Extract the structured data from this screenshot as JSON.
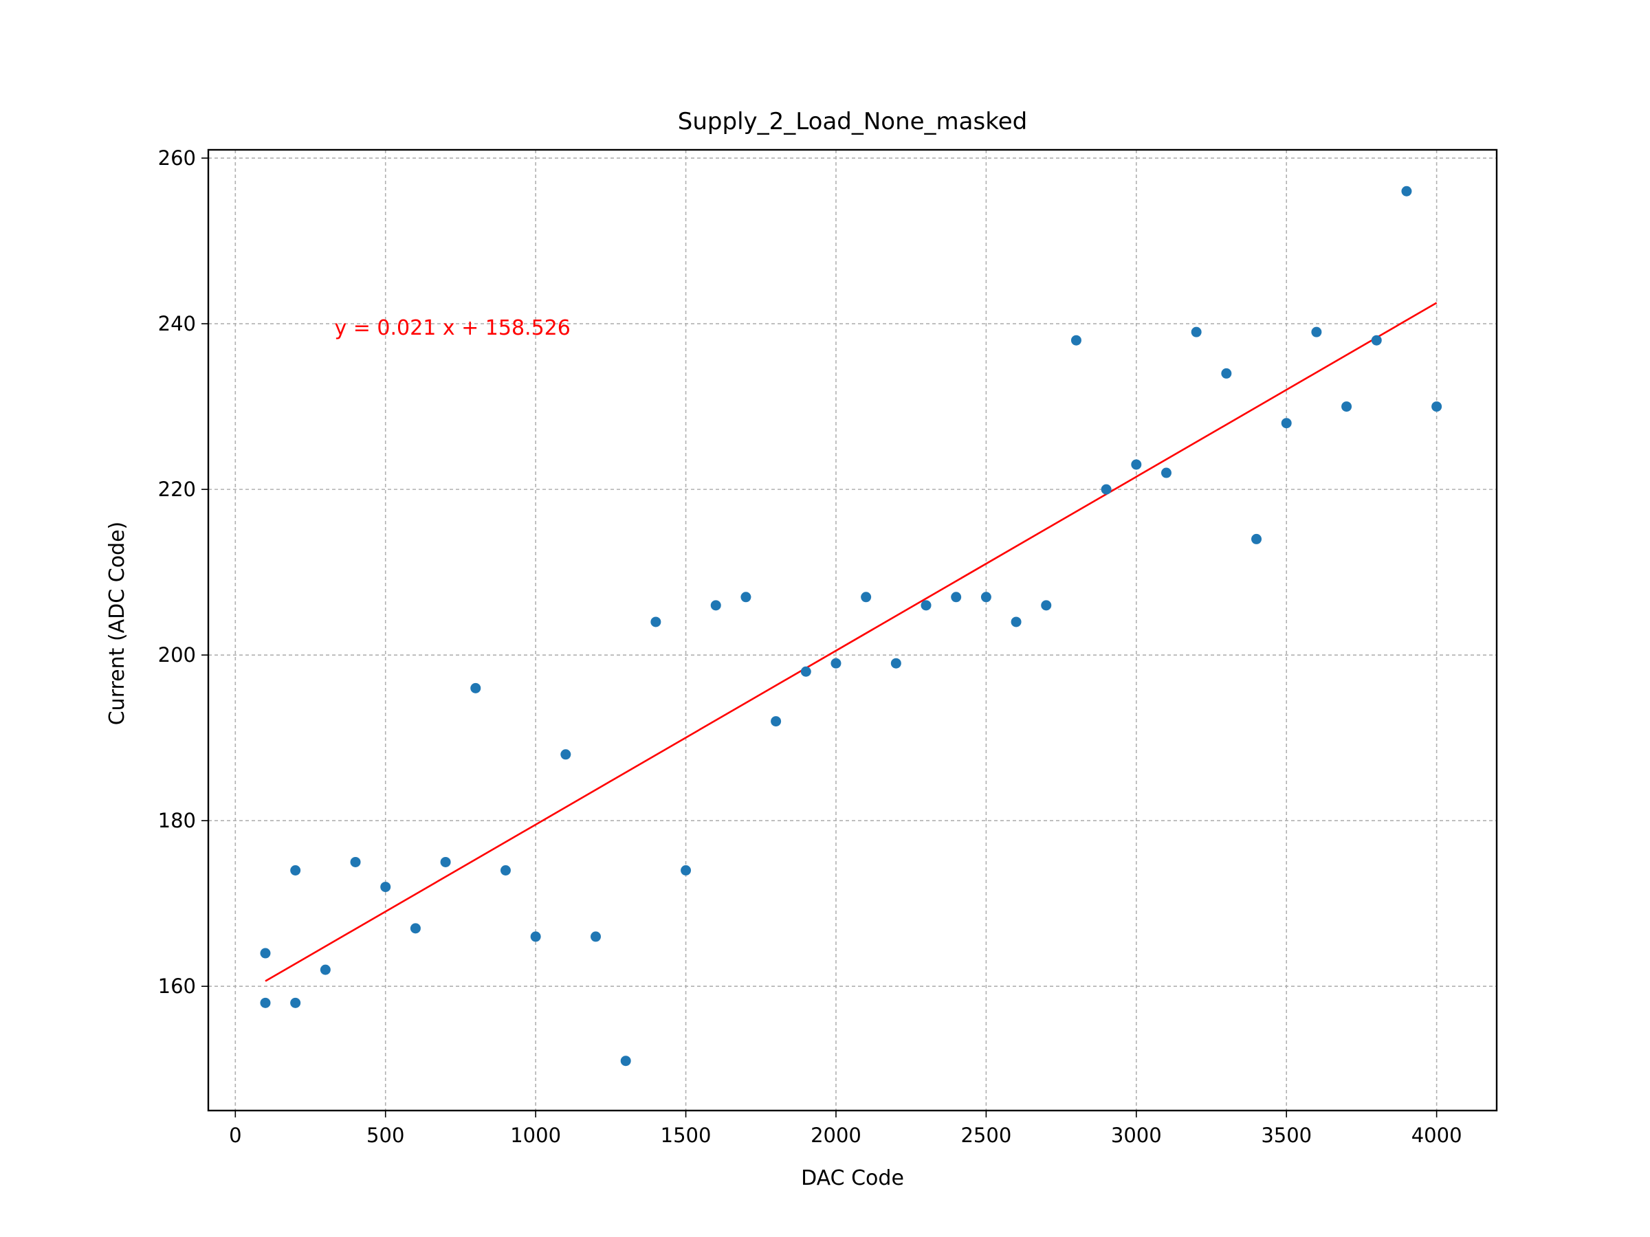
{
  "chart_data": {
    "type": "scatter",
    "title": "Supply_2_Load_None_masked",
    "xlabel": "DAC Code",
    "ylabel": "Current (ADC Code)",
    "xlim": [
      -90,
      4200
    ],
    "ylim": [
      145,
      261
    ],
    "xticks": [
      0,
      500,
      1000,
      1500,
      2000,
      2500,
      3000,
      3500,
      4000
    ],
    "yticks": [
      160,
      180,
      200,
      220,
      240,
      260
    ],
    "grid": true,
    "legend": "none",
    "series": [
      {
        "kind": "scatter",
        "color": "#1f77b4",
        "points": [
          [
            100,
            164
          ],
          [
            100,
            158
          ],
          [
            200,
            174
          ],
          [
            200,
            158
          ],
          [
            300,
            162
          ],
          [
            400,
            175
          ],
          [
            500,
            172
          ],
          [
            600,
            167
          ],
          [
            700,
            175
          ],
          [
            800,
            196
          ],
          [
            900,
            174
          ],
          [
            1000,
            166
          ],
          [
            1100,
            188
          ],
          [
            1200,
            166
          ],
          [
            1300,
            151
          ],
          [
            1400,
            204
          ],
          [
            1500,
            174
          ],
          [
            1600,
            206
          ],
          [
            1700,
            207
          ],
          [
            1800,
            192
          ],
          [
            1900,
            198
          ],
          [
            2000,
            199
          ],
          [
            2100,
            207
          ],
          [
            2200,
            199
          ],
          [
            2300,
            206
          ],
          [
            2400,
            207
          ],
          [
            2500,
            207
          ],
          [
            2600,
            204
          ],
          [
            2700,
            206
          ],
          [
            2800,
            238
          ],
          [
            2900,
            220
          ],
          [
            3000,
            223
          ],
          [
            3100,
            222
          ],
          [
            3200,
            239
          ],
          [
            3300,
            234
          ],
          [
            3400,
            214
          ],
          [
            3500,
            228
          ],
          [
            3600,
            239
          ],
          [
            3700,
            230
          ],
          [
            3800,
            238
          ],
          [
            3900,
            256
          ],
          [
            4000,
            230
          ]
        ]
      },
      {
        "kind": "line",
        "color": "#ff0000",
        "slope": 0.021,
        "intercept": 158.526,
        "x_range": [
          100,
          4000
        ]
      }
    ],
    "annotations": [
      {
        "text": "y = 0.021 x + 158.526",
        "x": 330,
        "y": 238.7,
        "color": "#ff0000"
      }
    ]
  }
}
